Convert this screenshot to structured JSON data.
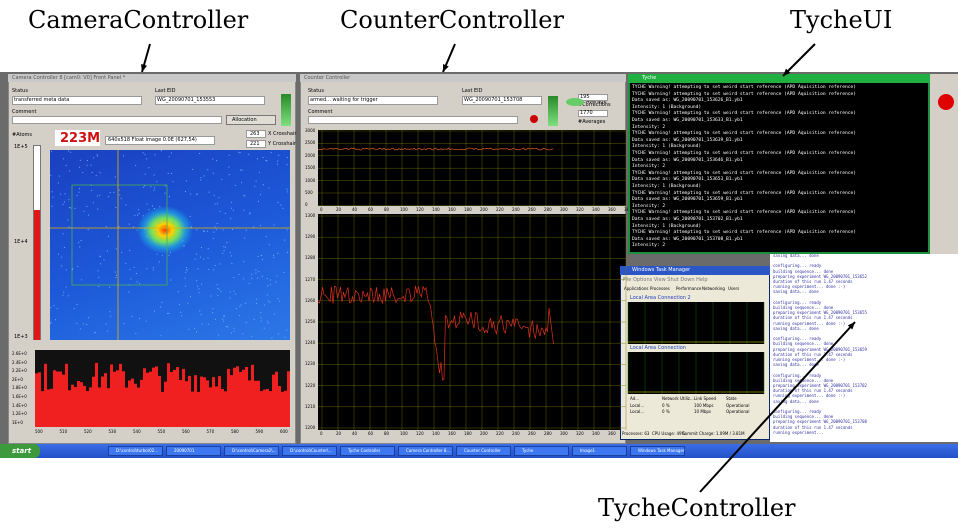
{
  "annotations": {
    "camera": "CameraController",
    "counter": "CounterController",
    "tyche_ui": "TycheUI",
    "tyche_controller": "TycheController"
  },
  "camera_window": {
    "title": "Camera Controller 8 [cam0: V0] Front Panel *",
    "status_label": "Status",
    "status": "transferred meta data",
    "eid_label": "Last EID",
    "eid": "WG_20090701_153553",
    "comment_label": "Comment",
    "allocation": "Allocation",
    "atoms_label": "#Atoms",
    "atoms": "223M",
    "image_info": "640x518 Float image 0.0E  (627,54)",
    "x_crosshair": "263",
    "x_crosshair_label": "X Crosshair",
    "y_crosshair": "221",
    "y_crosshair_label": "Y Crosshair",
    "scale_ticks": [
      "1E+5",
      "1E+4",
      "1E+3"
    ],
    "hist_yticks": [
      "2.6E+0",
      "2.4E+0",
      "2.2E+0",
      "2E+0",
      "1.8E+0",
      "1.6E+0",
      "1.4E+0",
      "1.2E+0",
      "1E+0"
    ],
    "hist_xticks": [
      "500",
      "510",
      "520",
      "530",
      "540",
      "550",
      "560",
      "570",
      "580",
      "590",
      "600"
    ]
  },
  "counter_window": {
    "title": "Counter Controller",
    "status_label": "Status",
    "status": "armed... waiting for trigger",
    "eid_label": "Last EID",
    "eid": "WG_20090701_153708",
    "comment_label": "Comment",
    "average": "Average",
    "corrections": "195",
    "corrections_label": "#Corrections",
    "averages": "1770",
    "averages_label": "#Averages",
    "plot1_yticks": [
      "3000",
      "2500",
      "2000",
      "1500",
      "1000",
      "500",
      "0"
    ],
    "plot2_yticks": [
      "1300",
      "1290",
      "1280",
      "1270",
      "1260",
      "1250",
      "1240",
      "1230",
      "1220",
      "1210",
      "1200"
    ],
    "xticks": [
      "0",
      "20",
      "40",
      "60",
      "80",
      "100",
      "120",
      "140",
      "160",
      "180",
      "200",
      "220",
      "240",
      "260",
      "280",
      "300",
      "320",
      "340",
      "360",
      "380"
    ]
  },
  "tyche_ui": {
    "title": "Tyche",
    "lines": [
      "TYCHE Warning! attempting to set weird start reference (APD Aquisition reference)",
      "TYCHE Warning! attempting to set weird start reference (APD Aquisition reference)",
      "Data saved as: WG_20090701_153626_B1.yb1",
      "        Intensity: 1 (Background)",
      "TYCHE Warning! attempting to set weird start reference (APD Aquisition reference)",
      "Data saved as: WG_20090701_153633_B1.yb1",
      "        Intensity: 2",
      "TYCHE Warning! attempting to set weird start reference (APD Aquisition reference)",
      "Data saved as: WG_20090701_153639_B1.yb1",
      "        Intensity: 1 (Background)",
      "TYCHE Warning! attempting to set weird start reference (APD Aquisition reference)",
      "Data saved as: WG_20090701_153646_B1.yb1",
      "        Intensity: 2",
      "TYCHE Warning! attempting to set weird start reference (APD Aquisition reference)",
      "Data saved as: WG_20090701_153653_B1.yb1",
      "        Intensity: 1 (Background)",
      "TYCHE Warning! attempting to set weird start reference (APD Aquisition reference)",
      "Data saved as: WG_20090701_153659_B1.yb1",
      "        Intensity: 2",
      "TYCHE Warning! attempting to set weird start reference (APD Aquisition reference)",
      "Data saved as: WG_20090701_153702_B1.yb1",
      "        Intensity: 1 (Background)",
      "TYCHE Warning! attempting to set weird start reference (APD Aquisition reference)",
      "Data saved as: WG_20090701_153708_B1.yb1",
      "        Intensity: 2"
    ]
  },
  "tyche_controller": {
    "lines": [
      "saving data... done",
      "",
      "configuring... ready",
      "building sequence... done",
      "preparing experiment WG_20090701_153652",
      "duration of this run 1.47 seconds",
      "running experiment... done :-)",
      "saving data... done",
      "",
      "configuring... ready",
      "building sequence... done",
      "preparing experiment WG_20090701_153655",
      "duration of this run 1.47 seconds",
      "running experiment... done :-)",
      "saving data... done",
      "",
      "configuring... ready",
      "building sequence... done",
      "preparing experiment WG_20090701_153659",
      "duration of this run 1.47 seconds",
      "running experiment... done :-)",
      "saving data... done",
      "",
      "configuring... ready",
      "building sequence... done",
      "preparing experiment WG_20090701_153702",
      "duration of this run 1.47 seconds",
      "running experiment... done :-)",
      "saving data... done",
      "",
      "configuring... ready",
      "building sequence... done",
      "preparing experiment WG_20090701_153708",
      "duration of this run 1.47 seconds",
      "running experiment..."
    ]
  },
  "task_manager": {
    "title": "Windows Task Manager",
    "menu": "File  Options  View  Shut Down  Help",
    "tabs": [
      "Applications",
      "Processes",
      "Performance",
      "Networking",
      "Users"
    ],
    "conn2": "Local Area Connection 2",
    "conn1": "Local Area Connection",
    "headers": [
      "Ad...",
      "Network Utiliz...",
      "Link Speed",
      "State"
    ],
    "rows": [
      [
        "Local...",
        "0 %",
        "100 Mbps",
        "Operational"
      ],
      [
        "Local...",
        "0 %",
        "10 Mbps",
        "Operational"
      ]
    ],
    "status": [
      "Processes: 63",
      "CPU Usage: 49%",
      "Commit Charge: 1.09M / 3.81M"
    ]
  },
  "taskbar": {
    "start": "start",
    "items": [
      "D:\\control\\turbo\\02...",
      "20090701",
      "D:\\control\\Camera2\\...",
      "D:\\control\\Counter\\...",
      "Tyche Controller",
      "Camera Controller 8...",
      "Counter Controller",
      "Tyche",
      "Image1",
      "Windows Task Manager"
    ]
  }
}
